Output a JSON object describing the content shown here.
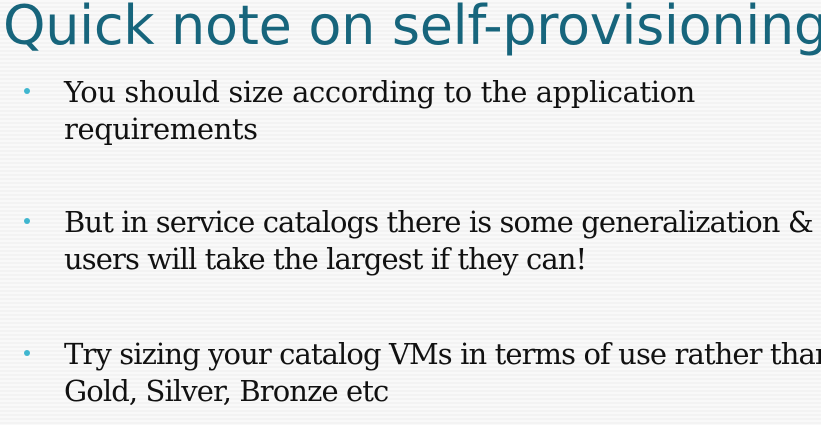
{
  "slide": {
    "title": "Quick note on self-provisioning",
    "bullets": [
      {
        "line1": "You should size according to the application",
        "line2": "requirements"
      },
      {
        "line1": "But in service catalogs there is some generalization &",
        "line2": "users will take the largest if they can!"
      },
      {
        "line1": "Try sizing your catalog VMs in terms of use rather than",
        "line2": "Gold, Silver, Bronze etc"
      }
    ]
  },
  "colors": {
    "title": "#17657c",
    "bullet_marker": "#3fb6cf",
    "text": "#111111",
    "background": "#f7f7f7"
  }
}
